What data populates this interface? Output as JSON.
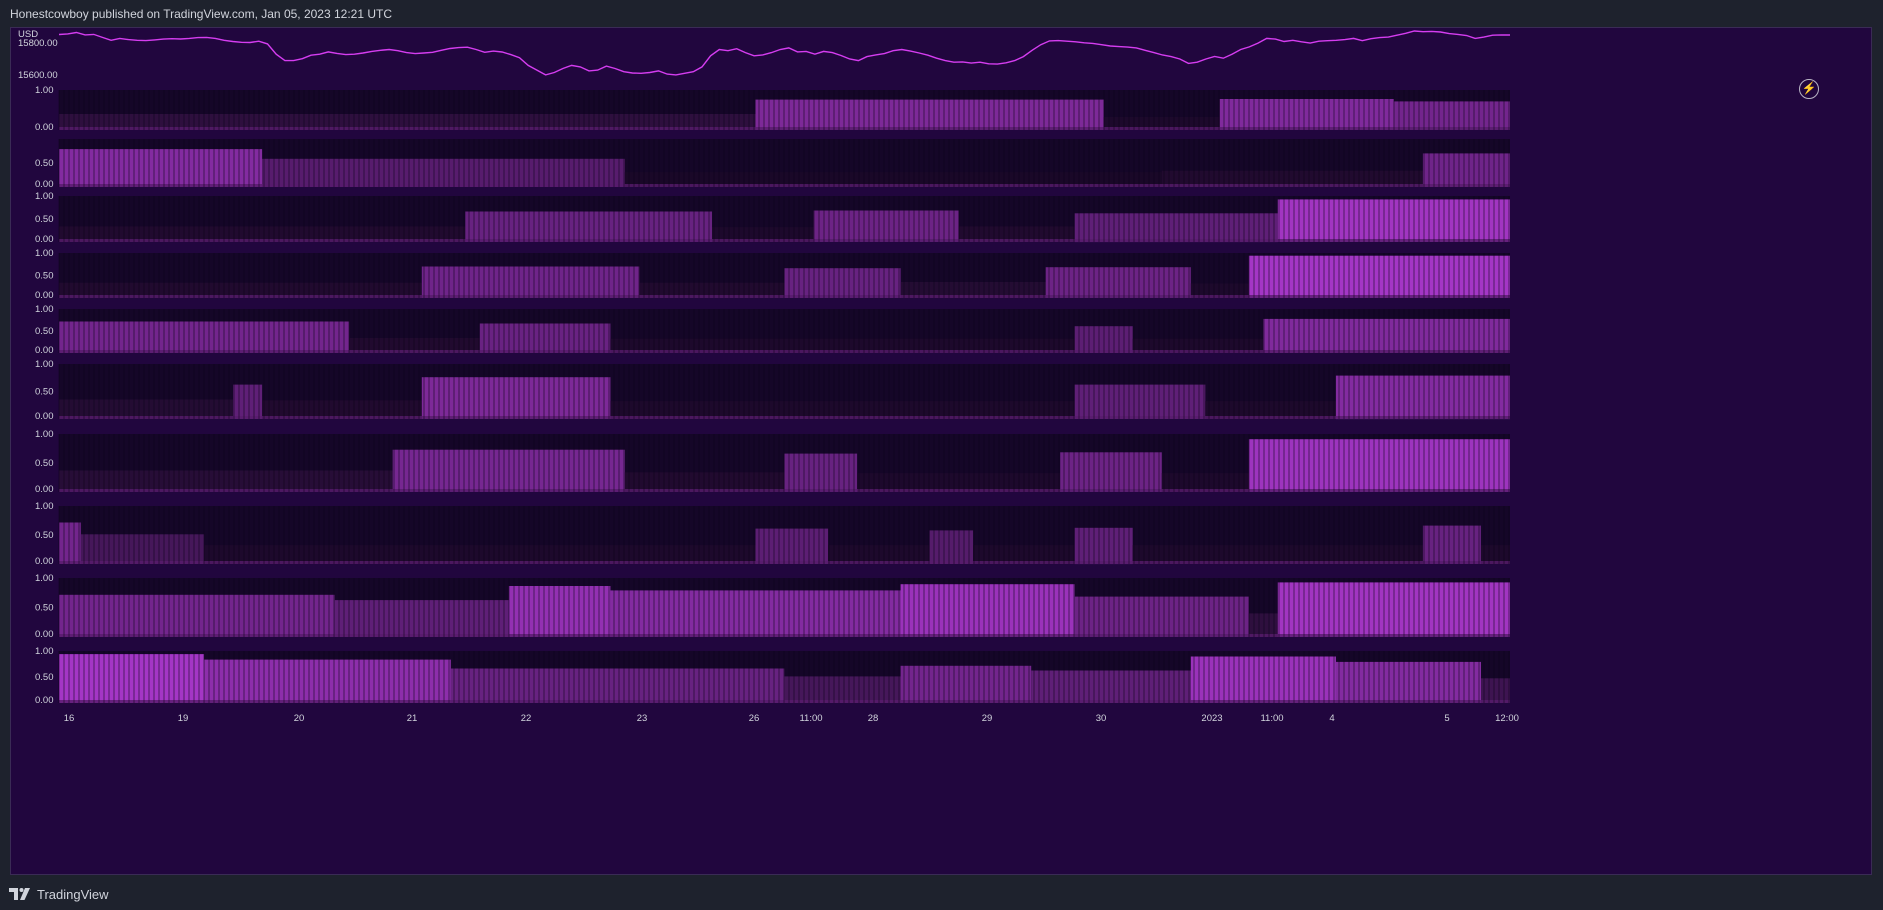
{
  "header": {
    "publisher": "Honestcowboy published on TradingView.com, Jan 05, 2023 12:21 UTC"
  },
  "footer": {
    "brand": "TradingView"
  },
  "price_pane": {
    "currency_label": "USD",
    "ticks": [
      "15800.00",
      "15600.00"
    ]
  },
  "x_axis": {
    "labels": [
      "16",
      "19",
      "20",
      "21",
      "22",
      "23",
      "26",
      "11:00",
      "28",
      "29",
      "30",
      "2023",
      "11:00",
      "4",
      "5",
      "12:00"
    ]
  },
  "icons": {
    "alert": "lightning-icon"
  },
  "colors": {
    "background": "#21063e",
    "line": "#d53df0",
    "bar_bright": "#b13ad4",
    "bar_dark": "#0d0419"
  },
  "chart_data": [
    {
      "type": "line",
      "title": "",
      "ylabel": "USD",
      "yticks": [
        15800,
        15600
      ],
      "ylim": [
        15530,
        15870
      ],
      "values": [
        15854,
        15858,
        15867,
        15852,
        15855,
        15836,
        15818,
        15830,
        15822,
        15818,
        15816,
        15820,
        15825,
        15828,
        15826,
        15830,
        15835,
        15836,
        15830,
        15818,
        15810,
        15805,
        15804,
        15812,
        15795,
        15730,
        15690,
        15690,
        15702,
        15724,
        15730,
        15745,
        15735,
        15728,
        15730,
        15738,
        15748,
        15755,
        15760,
        15752,
        15740,
        15734,
        15738,
        15742,
        15755,
        15766,
        15772,
        15774,
        15760,
        15742,
        15750,
        15744,
        15728,
        15708,
        15660,
        15630,
        15600,
        15615,
        15640,
        15660,
        15650,
        15625,
        15630,
        15655,
        15640,
        15620,
        15612,
        15610,
        15615,
        15625,
        15605,
        15600,
        15610,
        15620,
        15650,
        15720,
        15760,
        15752,
        15765,
        15740,
        15720,
        15726,
        15740,
        15760,
        15770,
        15745,
        15748,
        15730,
        15748,
        15740,
        15722,
        15700,
        15690,
        15715,
        15726,
        15734,
        15752,
        15760,
        15750,
        15738,
        15724,
        15705,
        15690,
        15680,
        15682,
        15674,
        15680,
        15670,
        15668,
        15676,
        15690,
        15715,
        15755,
        15790,
        15814,
        15816,
        15812,
        15808,
        15802,
        15798,
        15790,
        15782,
        15778,
        15775,
        15770,
        15755,
        15740,
        15725,
        15715,
        15700,
        15672,
        15680,
        15700,
        15716,
        15705,
        15730,
        15760,
        15776,
        15800,
        15830,
        15825,
        15810,
        15818,
        15808,
        15800,
        15812,
        15815,
        15818,
        15822,
        15830,
        15815,
        15828,
        15835,
        15838,
        15850,
        15862,
        15876,
        15872,
        15874,
        15870,
        15860,
        15855,
        15848,
        15830,
        15838,
        15850,
        15852,
        15851
      ]
    },
    {
      "type": "heatmap",
      "title": "",
      "note": "Ten stacked 0–1 indicator panes; brightness per segment",
      "panes": [
        {
          "yticks": [
            "1.00",
            "0.00"
          ],
          "ylim": [
            0,
            1
          ],
          "segments": [
            [
              0,
              0.48,
              0.2
            ],
            [
              0.48,
              0.72,
              0.68
            ],
            [
              0.72,
              0.8,
              0.1
            ],
            [
              0.8,
              0.92,
              0.7
            ],
            [
              0.92,
              1,
              0.62
            ]
          ]
        },
        {
          "yticks": [
            "0.50",
            "0.00"
          ],
          "ylim": [
            0,
            1
          ],
          "segments": [
            [
              0,
              0.14,
              0.72
            ],
            [
              0.14,
              0.39,
              0.45
            ],
            [
              0.39,
              0.76,
              0.08
            ],
            [
              0.76,
              0.94,
              0.12
            ],
            [
              0.94,
              1,
              0.6
            ]
          ]
        },
        {
          "yticks": [
            "1.00",
            "0.50",
            "0.00"
          ],
          "ylim": [
            0,
            1
          ],
          "segments": [
            [
              0,
              0.28,
              0.12
            ],
            [
              0.28,
              0.45,
              0.55
            ],
            [
              0.45,
              0.52,
              0.1
            ],
            [
              0.52,
              0.62,
              0.58
            ],
            [
              0.62,
              0.7,
              0.12
            ],
            [
              0.7,
              0.84,
              0.5
            ],
            [
              0.84,
              1,
              0.9
            ]
          ]
        },
        {
          "yticks": [
            "1.00",
            "0.50",
            "0.00"
          ],
          "ylim": [
            0,
            1
          ],
          "segments": [
            [
              0,
              0.25,
              0.12
            ],
            [
              0.25,
              0.4,
              0.6
            ],
            [
              0.4,
              0.5,
              0.12
            ],
            [
              0.5,
              0.58,
              0.55
            ],
            [
              0.58,
              0.68,
              0.14
            ],
            [
              0.68,
              0.78,
              0.58
            ],
            [
              0.78,
              0.82,
              0.1
            ],
            [
              0.82,
              1,
              0.92
            ]
          ]
        },
        {
          "yticks": [
            "1.00",
            "0.50",
            "0.00"
          ],
          "ylim": [
            0,
            1
          ],
          "segments": [
            [
              0,
              0.2,
              0.62
            ],
            [
              0.2,
              0.29,
              0.12
            ],
            [
              0.29,
              0.38,
              0.56
            ],
            [
              0.38,
              0.7,
              0.1
            ],
            [
              0.7,
              0.74,
              0.48
            ],
            [
              0.74,
              0.83,
              0.1
            ],
            [
              0.83,
              1,
              0.7
            ]
          ]
        },
        {
          "yticks": [
            "1.00",
            "0.50",
            "0.00"
          ],
          "ylim": [
            0,
            1
          ],
          "segments": [
            [
              0,
              0.12,
              0.14
            ],
            [
              0.12,
              0.14,
              0.5
            ],
            [
              0.14,
              0.25,
              0.12
            ],
            [
              0.25,
              0.38,
              0.68
            ],
            [
              0.38,
              0.7,
              0.1
            ],
            [
              0.7,
              0.79,
              0.5
            ],
            [
              0.79,
              0.88,
              0.1
            ],
            [
              0.88,
              1,
              0.72
            ]
          ]
        },
        {
          "yticks": [
            "1.00",
            "0.50",
            "0.00"
          ],
          "ylim": [
            0,
            1
          ],
          "segments": [
            [
              0,
              0.23,
              0.16
            ],
            [
              0.23,
              0.39,
              0.64
            ],
            [
              0.39,
              0.5,
              0.12
            ],
            [
              0.5,
              0.55,
              0.55
            ],
            [
              0.55,
              0.69,
              0.1
            ],
            [
              0.69,
              0.76,
              0.58
            ],
            [
              0.76,
              0.82,
              0.1
            ],
            [
              0.82,
              1,
              0.88
            ]
          ]
        },
        {
          "yticks": [
            "1.00",
            "0.50",
            "0.00"
          ],
          "ylim": [
            0,
            1
          ],
          "segments": [
            [
              0,
              0.015,
              0.62
            ],
            [
              0.015,
              0.1,
              0.35
            ],
            [
              0.1,
              0.48,
              0.1
            ],
            [
              0.48,
              0.53,
              0.48
            ],
            [
              0.53,
              0.6,
              0.1
            ],
            [
              0.6,
              0.63,
              0.44
            ],
            [
              0.63,
              0.7,
              0.1
            ],
            [
              0.7,
              0.74,
              0.5
            ],
            [
              0.74,
              0.94,
              0.1
            ],
            [
              0.94,
              0.98,
              0.55
            ],
            [
              0.98,
              1,
              0.1
            ]
          ]
        },
        {
          "yticks": [
            "1.00",
            "0.50",
            "0.00"
          ],
          "ylim": [
            0,
            1
          ],
          "segments": [
            [
              0,
              0.19,
              0.62
            ],
            [
              0.19,
              0.31,
              0.5
            ],
            [
              0.31,
              0.38,
              0.82
            ],
            [
              0.38,
              0.58,
              0.72
            ],
            [
              0.58,
              0.7,
              0.86
            ],
            [
              0.7,
              0.82,
              0.58
            ],
            [
              0.82,
              0.84,
              0.2
            ],
            [
              0.84,
              1,
              0.9
            ]
          ]
        },
        {
          "yticks": [
            "1.00",
            "0.50",
            "0.00"
          ],
          "ylim": [
            0,
            1
          ],
          "segments": [
            [
              0,
              0.1,
              0.92
            ],
            [
              0.1,
              0.27,
              0.78
            ],
            [
              0.27,
              0.5,
              0.55
            ],
            [
              0.5,
              0.58,
              0.35
            ],
            [
              0.58,
              0.67,
              0.62
            ],
            [
              0.67,
              0.78,
              0.5
            ],
            [
              0.78,
              0.88,
              0.86
            ],
            [
              0.88,
              0.98,
              0.72
            ],
            [
              0.98,
              1,
              0.3
            ]
          ]
        }
      ]
    }
  ]
}
